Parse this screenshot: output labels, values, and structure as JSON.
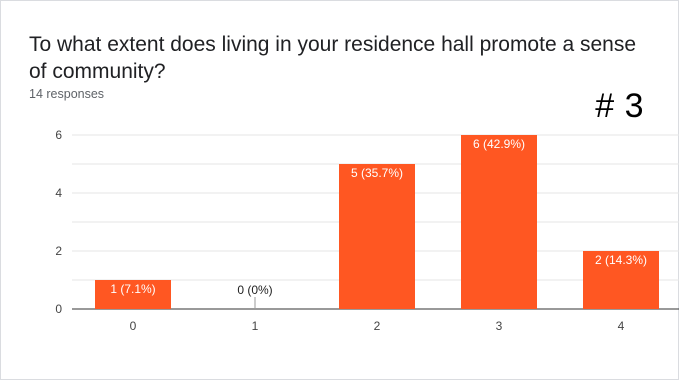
{
  "question": "To what extent does living in your residence hall promote a sense of community?",
  "responses": "14 responses",
  "annotation": "# 3",
  "colors": {
    "bar": "#ff5722",
    "grid": "#e6e6e6",
    "axis": "#333333"
  },
  "chart_data": {
    "type": "bar",
    "categories": [
      "0",
      "1",
      "2",
      "3",
      "4"
    ],
    "values": [
      1,
      0,
      5,
      6,
      2
    ],
    "data_labels": [
      "1 (7.1%)",
      "0 (0%)",
      "5 (35.7%)",
      "6 (42.9%)",
      "2 (14.3%)"
    ],
    "ylim": [
      0,
      6
    ],
    "yticks": [
      "0",
      "2",
      "4",
      "6"
    ],
    "grid": true
  }
}
